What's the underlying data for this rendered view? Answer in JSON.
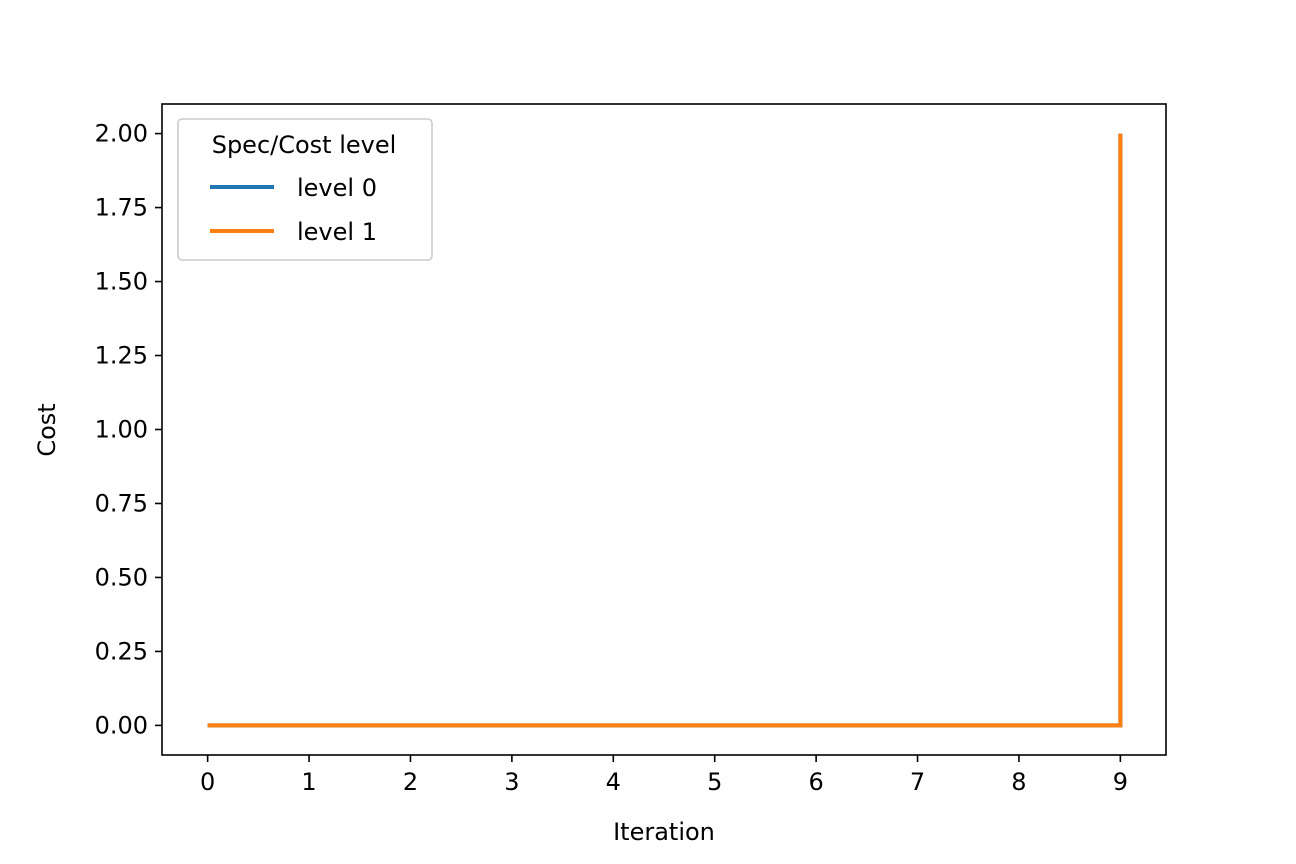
{
  "chart_data": {
    "type": "line",
    "title": "",
    "xlabel": "Iteration",
    "ylabel": "Cost",
    "xlim": [
      -0.45,
      9.45
    ],
    "ylim": [
      -0.1,
      2.1
    ],
    "xticks": [
      0,
      1,
      2,
      3,
      4,
      5,
      6,
      7,
      8,
      9
    ],
    "xtick_labels": [
      "0",
      "1",
      "2",
      "3",
      "4",
      "5",
      "6",
      "7",
      "8",
      "9"
    ],
    "yticks": [
      0,
      0.25,
      0.5,
      0.75,
      1.0,
      1.25,
      1.5,
      1.75,
      2.0
    ],
    "ytick_labels": [
      "0.00",
      "0.25",
      "0.50",
      "0.75",
      "1.00",
      "1.25",
      "1.50",
      "1.75",
      "2.00"
    ],
    "grid": false,
    "legend": {
      "title": "Spec/Cost level",
      "placement": "upper-left"
    },
    "series": [
      {
        "name": "level 0",
        "color": "#1f77b4",
        "x": [
          0,
          1,
          2,
          3,
          4,
          5,
          6,
          7,
          8,
          9,
          9
        ],
        "y": [
          0,
          0,
          0,
          0,
          0,
          0,
          0,
          0,
          0,
          0,
          2
        ]
      },
      {
        "name": "level 1",
        "color": "#ff7f0e",
        "x": [
          0,
          1,
          2,
          3,
          4,
          5,
          6,
          7,
          8,
          9,
          9
        ],
        "y": [
          0,
          0,
          0,
          0,
          0,
          0,
          0,
          0,
          0,
          0,
          2
        ]
      }
    ]
  }
}
